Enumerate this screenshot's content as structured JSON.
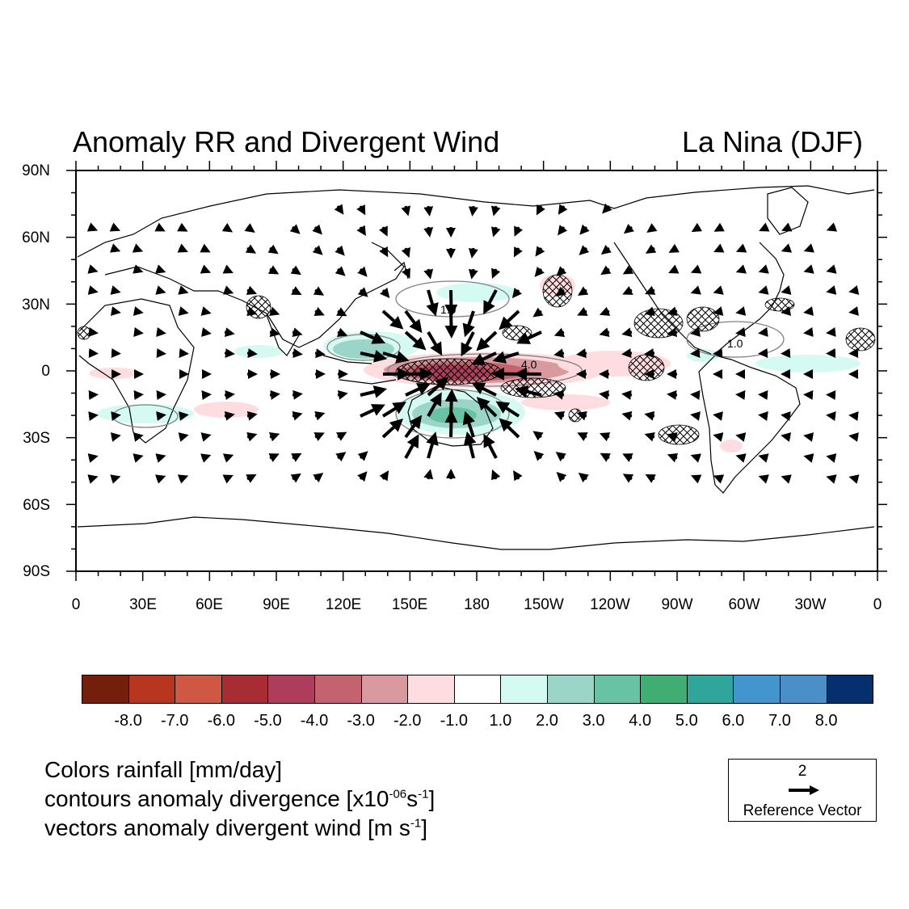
{
  "title": {
    "left": "Anomaly RR and Divergent Wind",
    "right": "La Nina  (DJF)"
  },
  "map": {
    "projection": "cylindrical-equidistant",
    "lon_range": [
      0,
      360
    ],
    "lat_range": [
      -90,
      90
    ],
    "lat_labels": [
      "90N",
      "60N",
      "30N",
      "0",
      "30S",
      "60S",
      "90S"
    ],
    "lon_labels": [
      "0",
      "30E",
      "60E",
      "90E",
      "120E",
      "150E",
      "180",
      "150W",
      "120W",
      "90W",
      "60W",
      "30W",
      "0"
    ],
    "contour_labels": [
      "1.0",
      "4.0",
      "1.0"
    ],
    "colors": {
      "coastline": "#000000",
      "contour": "#808080",
      "vector": "#000000",
      "hatch": "#000000"
    }
  },
  "colorbar": {
    "labels": [
      "-8.0",
      "-7.0",
      "-6.0",
      "-5.0",
      "-4.0",
      "-3.0",
      "-2.0",
      "-1.0",
      "1.0",
      "2.0",
      "3.0",
      "4.0",
      "5.0",
      "6.0",
      "7.0",
      "8.0"
    ],
    "colors": [
      "#731f0c",
      "#b8361f",
      "#cf5845",
      "#a82c33",
      "#ae3d5b",
      "#c3636f",
      "#d99a9f",
      "#ffdce0",
      "#ffffff",
      "#d4faf2",
      "#9ad5c8",
      "#68c3a4",
      "#40ae73",
      "#2fa59c",
      "#4396cd",
      "#4a8fc8",
      "#052f6d"
    ]
  },
  "legend": {
    "line1": "Colors rainfall [mm/day]",
    "line2_a": "contours anomaly divergence  [x10",
    "line2_sup1": "-06",
    "line2_b": "s",
    "line2_sup2": "-1",
    "line2_c": "]",
    "line3_a": "vectors anomaly divergent wind [m s",
    "line3_sup": "-1",
    "line3_b": "]"
  },
  "reference_vector": {
    "magnitude": "2",
    "label": "Reference Vector"
  }
}
